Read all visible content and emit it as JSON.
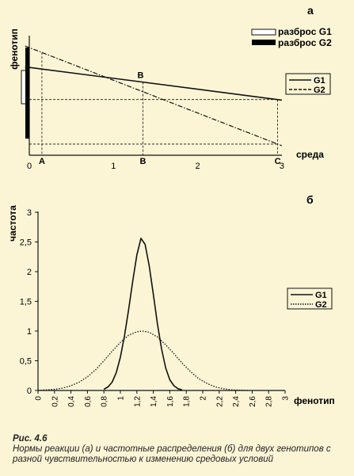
{
  "chart_data": [
    {
      "type": "line",
      "panel_label": "а",
      "ylabel": "фенотип",
      "xlabel": "среда",
      "xlim": [
        0,
        3
      ],
      "x_ticks": [
        "0",
        "1",
        "2",
        "3"
      ],
      "x_point_labels": [
        {
          "label": "A",
          "x": 0.15
        },
        {
          "label": "B",
          "x": 1.35
        },
        {
          "label": "C",
          "x": 2.95
        }
      ],
      "point_annotation": {
        "label": "B",
        "x": 1.35
      },
      "series": [
        {
          "name": "G1",
          "style": "solid",
          "x": [
            -0.05,
            3.0
          ],
          "y": [
            0.93,
            0.58
          ]
        },
        {
          "name": "G2",
          "style": "dash-dot",
          "x": [
            -0.05,
            3.0
          ],
          "y": [
            1.15,
            0.1
          ]
        }
      ],
      "legend": [
        "G1",
        "G2"
      ],
      "range_legend": [
        {
          "label": "разброс G1",
          "style": "open-bar"
        },
        {
          "label": "разброс G2",
          "style": "filled-bar"
        }
      ]
    },
    {
      "type": "line",
      "panel_label": "б",
      "ylabel": "частота",
      "xlabel": "фенотип",
      "xlim": [
        0,
        3
      ],
      "ylim": [
        0,
        3
      ],
      "x_ticks": [
        "0",
        "0,2",
        "0,4",
        "0,6",
        "0,8",
        "1",
        "1,2",
        "1,4",
        "1,6",
        "1,8",
        "2",
        "2,2",
        "2,4",
        "2,6",
        "2,8",
        "3"
      ],
      "y_ticks": [
        "0",
        "0,5",
        "1",
        "1,5",
        "2",
        "2,5",
        "3"
      ],
      "series": [
        {
          "name": "G1",
          "style": "solid",
          "x": [
            0.8,
            0.85,
            0.9,
            0.95,
            1.0,
            1.05,
            1.1,
            1.15,
            1.2,
            1.25,
            1.3,
            1.35,
            1.4,
            1.45,
            1.5,
            1.55,
            1.6,
            1.65,
            1.7,
            1.75
          ],
          "y": [
            0.02,
            0.06,
            0.14,
            0.3,
            0.56,
            0.92,
            1.36,
            1.84,
            2.28,
            2.56,
            2.46,
            2.1,
            1.62,
            1.12,
            0.7,
            0.38,
            0.18,
            0.08,
            0.03,
            0.01
          ]
        },
        {
          "name": "G2",
          "style": "dotted",
          "x": [
            0.0,
            0.1,
            0.2,
            0.3,
            0.4,
            0.5,
            0.6,
            0.7,
            0.8,
            0.9,
            1.0,
            1.1,
            1.2,
            1.27,
            1.35,
            1.45,
            1.55,
            1.65,
            1.75,
            1.85,
            1.95,
            2.05,
            2.15,
            2.25,
            2.35,
            2.45,
            2.55
          ],
          "y": [
            0.0,
            0.01,
            0.02,
            0.04,
            0.08,
            0.14,
            0.23,
            0.35,
            0.5,
            0.66,
            0.81,
            0.93,
            0.99,
            1.0,
            0.98,
            0.9,
            0.77,
            0.62,
            0.46,
            0.32,
            0.2,
            0.12,
            0.06,
            0.03,
            0.01,
            0.005,
            0.0
          ]
        }
      ],
      "legend": [
        "G1",
        "G2"
      ]
    }
  ],
  "caption": {
    "title": "Рис. 4.6",
    "text": "Нормы реакции (а) и частотные распределения (б) для двух генотипов с разной чувствительностью к изменению средовых условий"
  }
}
